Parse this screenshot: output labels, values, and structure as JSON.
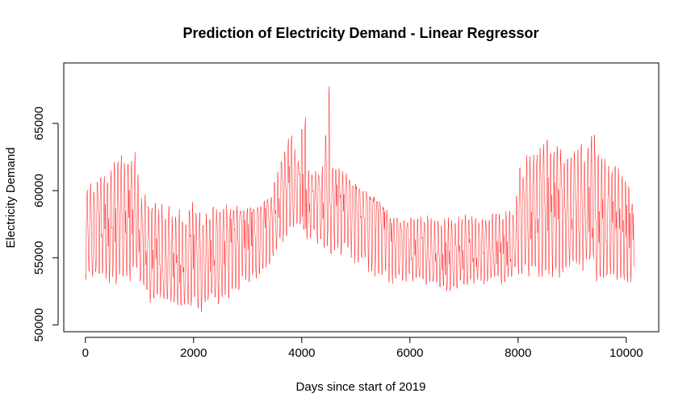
{
  "chart_data": {
    "type": "line",
    "title": "Prediction of Electricity Demand - Linear Regressor",
    "xlabel": "Days since start of 2019",
    "ylabel": "Electricity Demand",
    "xlim": [
      -400,
      10600
    ],
    "ylim": [
      49500,
      69500
    ],
    "x_ticks": [
      0,
      2000,
      4000,
      6000,
      8000,
      10000
    ],
    "y_ticks": [
      50000,
      55000,
      60000,
      65000
    ],
    "x_tick_labels": [
      "0",
      "2000",
      "4000",
      "6000",
      "8000",
      "10000"
    ],
    "y_tick_labels": [
      "50000",
      "55000",
      "60000",
      "65000"
    ],
    "grid": false,
    "legend": "none",
    "series": [
      {
        "color": "#ff0000",
        "envelope": {
          "x": [
            0,
            200,
            400,
            600,
            800,
            950,
            1000,
            1200,
            1400,
            1600,
            1800,
            2000,
            2100,
            2200,
            2400,
            2600,
            2800,
            3000,
            3200,
            3400,
            3600,
            3800,
            3950,
            4050,
            4100,
            4200,
            4300,
            4400,
            4500,
            4550,
            4600,
            4800,
            5000,
            5200,
            5400,
            5600,
            5800,
            6000,
            6200,
            6400,
            6600,
            6800,
            7000,
            7200,
            7400,
            7600,
            7800,
            7950,
            8000,
            8200,
            8400,
            8600,
            8800,
            9000,
            9200,
            9400,
            9500,
            9600,
            9800,
            10000,
            10150
          ],
          "low": [
            53000,
            53500,
            53000,
            53000,
            52500,
            54000,
            53000,
            51500,
            52000,
            51500,
            51000,
            51500,
            50500,
            51500,
            51500,
            51500,
            52500,
            53000,
            53500,
            54500,
            55500,
            56500,
            57500,
            57000,
            56000,
            56500,
            56000,
            55500,
            56000,
            55000,
            55500,
            55000,
            54500,
            54000,
            53500,
            53000,
            53000,
            53000,
            53000,
            53000,
            52500,
            52500,
            53000,
            53000,
            53000,
            53000,
            53000,
            54000,
            53500,
            53500,
            53500,
            53500,
            53500,
            54000,
            54000,
            54500,
            52000,
            53500,
            53000,
            52500,
            53500
          ],
          "mid": [
            57000,
            57000,
            57500,
            58000,
            58500,
            58000,
            56000,
            55000,
            54500,
            54500,
            54500,
            55000,
            54000,
            54500,
            55500,
            56000,
            56500,
            57000,
            57500,
            58000,
            59500,
            60500,
            60000,
            59500,
            59000,
            59500,
            59500,
            59500,
            60000,
            59500,
            59500,
            59500,
            59000,
            58500,
            58000,
            57000,
            56500,
            56000,
            55500,
            55500,
            55000,
            55000,
            55500,
            55500,
            55500,
            55500,
            55500,
            56000,
            57500,
            58000,
            58500,
            58500,
            58500,
            58500,
            58500,
            58500,
            58000,
            57500,
            57500,
            57000,
            57000
          ],
          "high": [
            61000,
            61000,
            61500,
            62500,
            63000,
            63000,
            60000,
            59500,
            59000,
            59000,
            58500,
            59500,
            58500,
            58500,
            59000,
            59000,
            59000,
            59000,
            59000,
            59500,
            62000,
            64500,
            62500,
            68000,
            62000,
            61500,
            61500,
            62000,
            69000,
            62500,
            62000,
            61500,
            60500,
            60000,
            59500,
            58500,
            58000,
            58000,
            58500,
            58000,
            58000,
            58000,
            58500,
            58000,
            58000,
            58500,
            58500,
            58500,
            61500,
            63000,
            63500,
            64000,
            63000,
            63500,
            63500,
            64500,
            62500,
            62500,
            62000,
            61000,
            59500
          ]
        }
      }
    ]
  }
}
